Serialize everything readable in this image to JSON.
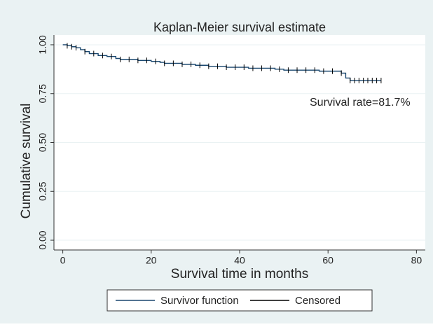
{
  "chart_data": {
    "type": "line",
    "step": true,
    "title": "Kaplan-Meier survival estimate",
    "x_label": "Survival time in months",
    "y_label": "Cumulative survival",
    "annotation": "Survival rate=81.7%",
    "series": [
      {
        "name": "Survivor function",
        "color": "#1a476f",
        "x": [
          0,
          1,
          2,
          3,
          4,
          5,
          6,
          8,
          10,
          12,
          13,
          17,
          20,
          22,
          23,
          27,
          30,
          33,
          37,
          42,
          48,
          50,
          58,
          63,
          64,
          65,
          72
        ],
        "values": [
          1.0,
          0.995,
          0.99,
          0.985,
          0.975,
          0.965,
          0.955,
          0.945,
          0.94,
          0.93,
          0.925,
          0.92,
          0.915,
          0.91,
          0.905,
          0.9,
          0.895,
          0.89,
          0.885,
          0.88,
          0.875,
          0.87,
          0.865,
          0.855,
          0.83,
          0.817,
          0.817
        ]
      },
      {
        "name": "Censored",
        "color": "#000000",
        "marker": "tick",
        "x": [
          1,
          2,
          3,
          5,
          7,
          9,
          11,
          13,
          15,
          17,
          19,
          21,
          23,
          25,
          27,
          29,
          31,
          33,
          35,
          37,
          39,
          41,
          43,
          45,
          47,
          49,
          51,
          53,
          55,
          57,
          59,
          61,
          63,
          65,
          66,
          67,
          68,
          69,
          70,
          71,
          72
        ],
        "values": [
          0.995,
          0.99,
          0.985,
          0.965,
          0.955,
          0.945,
          0.94,
          0.925,
          0.925,
          0.92,
          0.92,
          0.915,
          0.905,
          0.905,
          0.9,
          0.9,
          0.895,
          0.89,
          0.89,
          0.885,
          0.885,
          0.885,
          0.88,
          0.88,
          0.88,
          0.875,
          0.87,
          0.87,
          0.87,
          0.87,
          0.865,
          0.865,
          0.855,
          0.817,
          0.817,
          0.817,
          0.817,
          0.817,
          0.817,
          0.817,
          0.817
        ]
      }
    ],
    "xlim": [
      -2,
      82
    ],
    "ylim": [
      -0.05,
      1.05
    ],
    "xticks": [
      0,
      20,
      40,
      60,
      80
    ],
    "yticks": [
      {
        "value": 0,
        "label": "0.00"
      },
      {
        "value": 0.25,
        "label": "0.25"
      },
      {
        "value": 0.5,
        "label": "0.50"
      },
      {
        "value": 0.75,
        "label": "0.75"
      },
      {
        "value": 1,
        "label": "1.00"
      }
    ],
    "grid": true,
    "legend": "bottom"
  }
}
